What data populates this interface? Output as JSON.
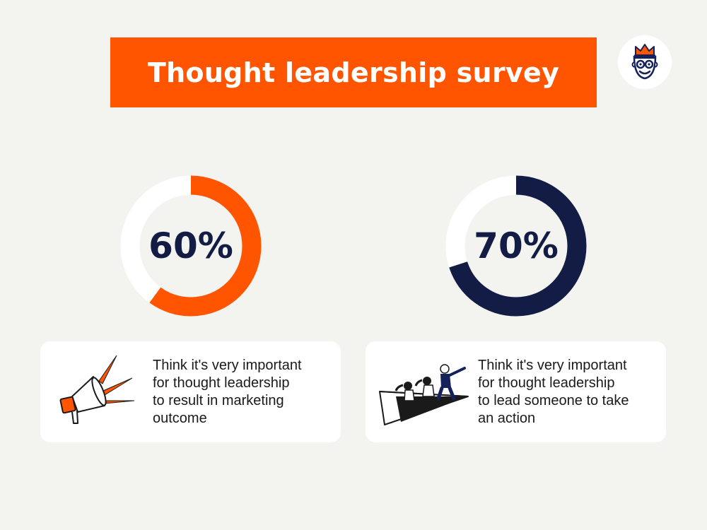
{
  "header": {
    "title": "Thought leadership survey"
  },
  "logo": {
    "icon": "jester-face-logo-icon",
    "accent": "#ff5500",
    "ink": "#15215a"
  },
  "colors": {
    "background": "#f3f3ef",
    "accent": "#ff5500",
    "navy": "#121c44",
    "track": "#ffffff"
  },
  "chart_data": [
    {
      "type": "pie",
      "variant": "donut",
      "value": 60,
      "max": 100,
      "label": "60%",
      "color": "#ff5500",
      "description": "Think it's very important for thought leadership to result in marketing outcome",
      "icon": "megaphone-icon"
    },
    {
      "type": "pie",
      "variant": "donut",
      "value": 70,
      "max": 100,
      "label": "70%",
      "color": "#121c44",
      "description": "Think it's very important for thought leadership to lead someone to take an action",
      "icon": "paper-plane-team-icon"
    }
  ],
  "cards": [
    {
      "lines": [
        "Think it's very important",
        "for thought leadership",
        "to result in marketing",
        "outcome"
      ]
    },
    {
      "lines": [
        "Think it's very important",
        "for thought leadership",
        "to lead someone to take",
        "an action"
      ]
    }
  ]
}
